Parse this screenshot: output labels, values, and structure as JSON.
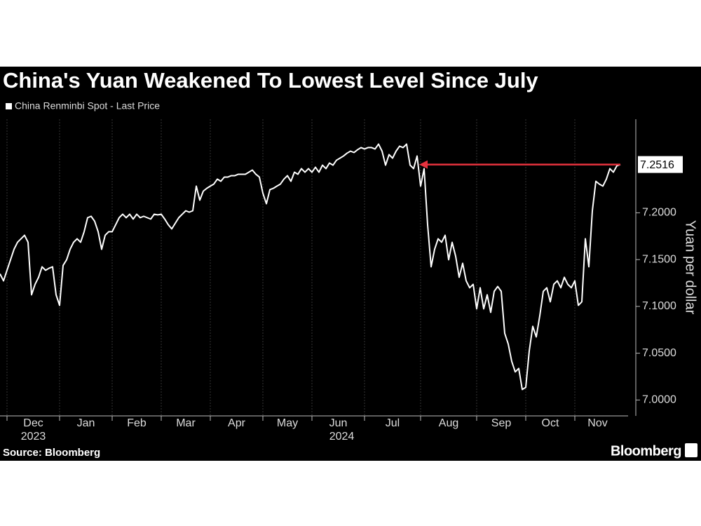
{
  "chart_data": {
    "type": "line",
    "title": "China's Yuan Weakened To Lowest Level Since July",
    "y_label": "Yuan per dollar",
    "source": "Source: Bloomberg",
    "logo": "Bloomberg",
    "years": [
      "2023",
      "2024"
    ],
    "annotation_color": "#e8323e",
    "grid": true,
    "ylim": [
      6.983,
      7.3
    ],
    "yticks": [
      {
        "value": 7,
        "label": "7.0000"
      },
      {
        "value": 7.05,
        "label": "7.0500"
      },
      {
        "value": 7.1,
        "label": "7.1000"
      },
      {
        "value": 7.15,
        "label": "7.1500"
      },
      {
        "value": 7.2,
        "label": "7.2000"
      }
    ],
    "categories": [
      null,
      null,
      "Dec",
      null,
      null,
      null,
      null,
      null,
      null,
      null,
      null,
      null,
      null,
      null,
      null,
      null,
      null,
      "Jan",
      null,
      null,
      null,
      null,
      null,
      null,
      null,
      null,
      null,
      null,
      null,
      null,
      null,
      null,
      "Feb",
      null,
      null,
      null,
      null,
      null,
      null,
      null,
      null,
      null,
      null,
      null,
      null,
      null,
      "Mar",
      null,
      null,
      null,
      null,
      null,
      null,
      null,
      null,
      null,
      null,
      null,
      null,
      null,
      "Apr",
      null,
      null,
      null,
      null,
      null,
      null,
      null,
      null,
      null,
      null,
      null,
      null,
      null,
      null,
      "May",
      null,
      null,
      null,
      null,
      null,
      null,
      null,
      null,
      null,
      null,
      null,
      null,
      null,
      "Jun",
      null,
      null,
      null,
      null,
      null,
      null,
      null,
      null,
      null,
      null,
      null,
      null,
      null,
      null,
      "Jul",
      null,
      null,
      null,
      null,
      null,
      null,
      null,
      null,
      null,
      null,
      null,
      null,
      null,
      null,
      null,
      "Aug",
      null,
      null,
      null,
      null,
      null,
      null,
      null,
      null,
      null,
      null,
      null,
      null,
      null,
      null,
      null,
      "Sep",
      null,
      null,
      null,
      null,
      null,
      null,
      null,
      null,
      null,
      null,
      null,
      null,
      null,
      "Oct",
      null,
      null,
      null,
      null,
      null,
      null,
      null,
      null,
      null,
      null,
      null,
      null,
      null,
      "Nov",
      null,
      null,
      null,
      null,
      null,
      null,
      null,
      null,
      null,
      null,
      null,
      null,
      null
    ],
    "series": [
      {
        "name": "China Renminbi Spot - Last Price",
        "color": "#ffffff",
        "values": [
          7.1348,
          7.1273,
          7.1386,
          7.1498,
          7.161,
          7.1685,
          7.1723,
          7.176,
          7.1685,
          7.1124,
          7.1236,
          7.1311,
          7.1423,
          7.1386,
          7.1408,
          7.1423,
          7.1124,
          7.1011,
          7.1438,
          7.1498,
          7.161,
          7.1685,
          7.1723,
          7.1685,
          7.1798,
          7.1948,
          7.1963,
          7.191,
          7.1798,
          7.161,
          7.176,
          7.1798,
          7.1798,
          7.1873,
          7.1948,
          7.1985,
          7.1948,
          7.1985,
          7.1933,
          7.1985,
          7.1948,
          7.1963,
          7.1948,
          7.1933,
          7.1985,
          7.1978,
          7.1985,
          7.1933,
          7.1873,
          7.1828,
          7.1888,
          7.1948,
          7.1985,
          7.2022,
          7.2007,
          7.2022,
          7.2285,
          7.2135,
          7.2232,
          7.2262,
          7.2285,
          7.2307,
          7.236,
          7.2337,
          7.2382,
          7.2382,
          7.2397,
          7.2397,
          7.2412,
          7.2412,
          7.2412,
          7.2434,
          7.2457,
          7.2412,
          7.2382,
          7.221,
          7.2097,
          7.2247,
          7.2262,
          7.2285,
          7.2307,
          7.236,
          7.2397,
          7.2337,
          7.2434,
          7.2412,
          7.2472,
          7.2434,
          7.2472,
          7.2434,
          7.2487,
          7.2434,
          7.2509,
          7.2472,
          7.2532,
          7.2509,
          7.2562,
          7.2584,
          7.2607,
          7.2637,
          7.2659,
          7.2644,
          7.2674,
          7.2697,
          7.2682,
          7.2697,
          7.2697,
          7.2682,
          7.2734,
          7.2659,
          7.2509,
          7.2622,
          7.2584,
          7.2659,
          7.2712,
          7.2697,
          7.2734,
          7.2509,
          7.2472,
          7.2607,
          7.2285,
          7.2472,
          7.1873,
          7.1423,
          7.161,
          7.1723,
          7.1685,
          7.176,
          7.1498,
          7.1685,
          7.1536,
          7.1311,
          7.1461,
          7.1273,
          7.1199,
          7.1236,
          7.0974,
          7.1199,
          7.0974,
          7.1124,
          7.0936,
          7.1161,
          7.1213,
          7.1161,
          7.0712,
          7.0599,
          7.0412,
          7.03,
          7.0337,
          7.0112,
          7.0135,
          7.0524,
          7.0787,
          7.0674,
          7.0899,
          7.1161,
          7.1199,
          7.1049,
          7.1236,
          7.1273,
          7.1199,
          7.1311,
          7.1236,
          7.1199,
          7.1273,
          7.1011,
          7.1049,
          7.1723,
          7.1423,
          7.2022,
          7.2337,
          7.2307,
          7.2285,
          7.236,
          7.2472,
          7.2434,
          7.2502,
          7.2516
        ]
      }
    ]
  }
}
